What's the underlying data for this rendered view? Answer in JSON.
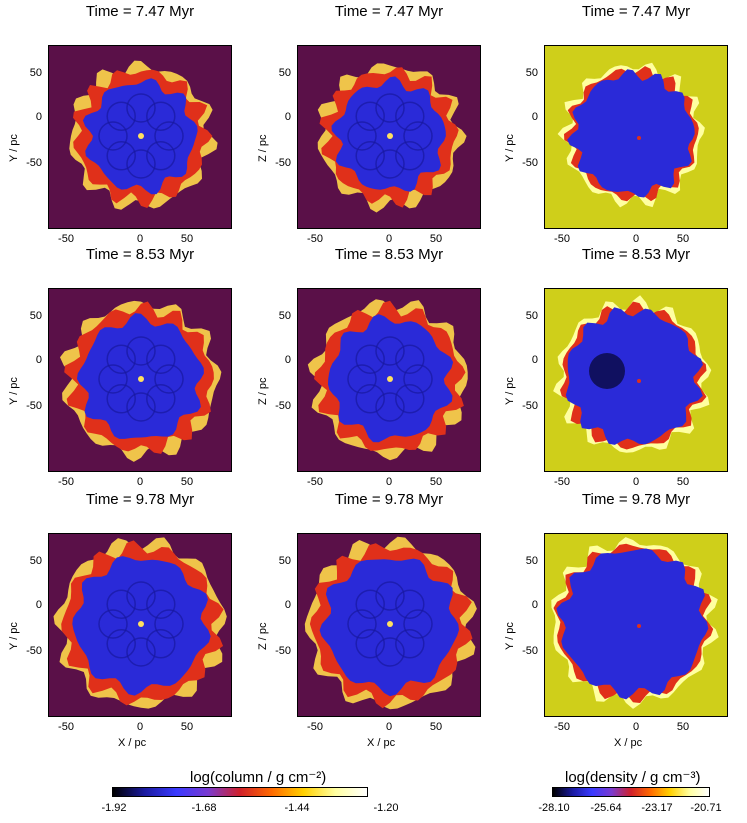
{
  "rows": [
    {
      "time_title": "Time = 7.47 Myr"
    },
    {
      "time_title": "Time = 8.53 Myr"
    },
    {
      "time_title": "Time = 9.78 Myr"
    }
  ],
  "columns": [
    {
      "ylabel": "Y / pc",
      "kind": "column"
    },
    {
      "ylabel": "Z / pc",
      "kind": "column"
    },
    {
      "ylabel": "Y / pc",
      "kind": "density"
    }
  ],
  "xlabel": "X / pc",
  "y_ticks": [
    "50",
    "0",
    "-50"
  ],
  "x_ticks": [
    "-50",
    "0",
    "50"
  ],
  "colorbars": [
    {
      "title": "log(column / g cm⁻²)",
      "ticks": [
        "-1.92",
        "-1.68",
        "-1.44",
        "-1.20"
      ],
      "colors": [
        "#000000",
        "#1a1aa0",
        "#3a3aff",
        "#7a3ad0",
        "#d0202a",
        "#ff6a00",
        "#ffd000",
        "#ffffa0",
        "#ffffff"
      ]
    },
    {
      "title": "log(density / g cm⁻³)",
      "ticks": [
        "-28.10",
        "-25.64",
        "-23.17",
        "-20.71"
      ],
      "colors": [
        "#000000",
        "#1a1aa0",
        "#3a3aff",
        "#7a3ad0",
        "#d0202a",
        "#ff6a00",
        "#ffd000",
        "#ffffa0",
        "#ffffff"
      ]
    }
  ],
  "colors": {
    "column_background": "#5a1048",
    "density_background": "#cfcf1a",
    "bubble_interior": "#2a2ad8",
    "shell_red": "#e0301a",
    "shell_yellow": "#ffd84a"
  }
}
